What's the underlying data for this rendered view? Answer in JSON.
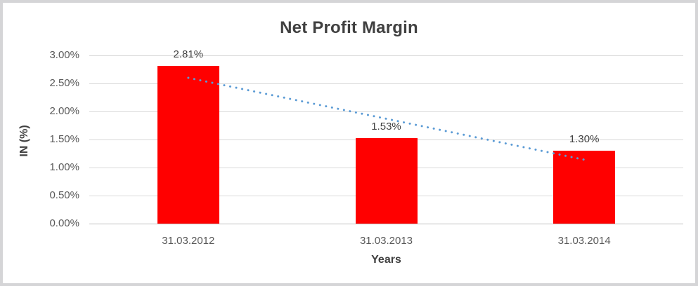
{
  "chart_data": {
    "type": "bar",
    "title": "Net Profit Margin",
    "xlabel": "Years",
    "ylabel": "IN (%)",
    "categories": [
      "31.03.2012",
      "31.03.2013",
      "31.03.2014"
    ],
    "values": [
      2.81,
      1.53,
      1.3
    ],
    "value_labels": [
      "2.81%",
      "1.53%",
      "1.30%"
    ],
    "ylim": [
      0,
      3
    ],
    "ytick_step": 0.5,
    "ytick_labels": [
      "0.00%",
      "0.50%",
      "1.00%",
      "1.50%",
      "2.00%",
      "2.50%",
      "3.00%"
    ],
    "grid": true,
    "legend": "none",
    "bar_color": "#FF0000",
    "trendline": {
      "type": "linear",
      "style": "dotted",
      "color": "#5B9BD5",
      "start_value": 2.6,
      "end_value": 1.14
    }
  },
  "colors": {
    "background": "#FFFFFF",
    "frame_border": "#D5D5D7",
    "gridline": "#D9D9D9",
    "axis_line": "#BFBFBF",
    "title_text": "#404040",
    "tick_text": "#595959"
  }
}
